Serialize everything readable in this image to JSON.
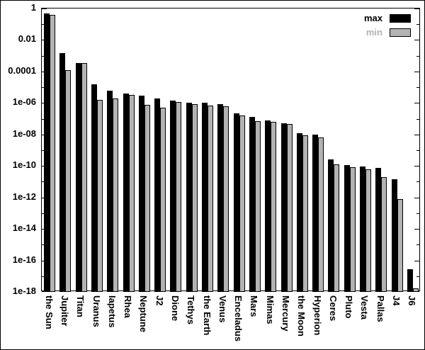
{
  "chart_data": {
    "type": "bar",
    "title": "",
    "scale": "log",
    "grid": false,
    "legend_position": "top-right",
    "ylim": [
      1e-18,
      1
    ],
    "y_ticks": [
      "1",
      "0.01",
      "0.0001",
      "1e-06",
      "1e-08",
      "1e-10",
      "1e-12",
      "1e-14",
      "1e-16",
      "1e-18"
    ],
    "categories": [
      "the Sun",
      "Jupiter",
      "Titan",
      "Uranus",
      "Iapetus",
      "Rhea",
      "Neptune",
      "J2",
      "Dione",
      "Tethys",
      "the Earth",
      "Venus",
      "Enceladus",
      "Mars",
      "Mimas",
      "Mercury",
      "the Moon",
      "Hyperion",
      "Ceres",
      "Pluto",
      "Vesta",
      "Pallas",
      "J4",
      "J6"
    ],
    "series": [
      {
        "name": "max",
        "color": "#000000",
        "values": [
          0.48,
          0.0015,
          0.00036,
          1.5e-05,
          6e-06,
          4e-06,
          2.9e-06,
          2e-06,
          1.4e-06,
          1e-06,
          1e-06,
          8.5e-07,
          2.2e-07,
          1.3e-07,
          8e-08,
          5e-08,
          1.25e-08,
          1e-08,
          2.5e-10,
          1.1e-10,
          9e-11,
          7.5e-11,
          1.4e-11,
          2.7e-17
        ]
      },
      {
        "name": "min",
        "color": "#b3b3b3",
        "values": [
          0.4,
          0.00012,
          0.00033,
          1.5e-06,
          2e-06,
          3.2e-06,
          7.5e-07,
          5e-07,
          1.15e-06,
          8.3e-07,
          6.8e-07,
          6e-07,
          1.6e-07,
          7e-08,
          6.6e-08,
          4.6e-08,
          8.7e-09,
          6.3e-09,
          1.25e-10,
          8e-11,
          6e-11,
          2e-11,
          8e-13,
          1.6e-18
        ]
      }
    ]
  }
}
